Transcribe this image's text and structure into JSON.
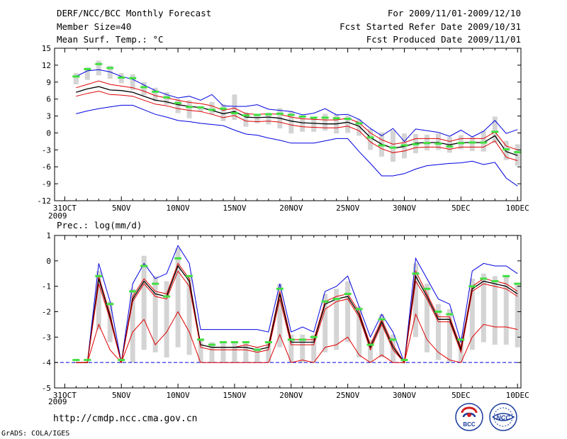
{
  "header": {
    "line1_left": "DERF/NCC/BCC Monthly Forecast",
    "line2_left": "Member Size=40",
    "line3_left": "Mean Surf. Temp.: °C",
    "line1_right": "For 2009/11/01-2009/12/10",
    "line2_right": "Fcst Started Refer Date 2009/10/31",
    "line3_right": "Fcst Produced Date 2009/11/01"
  },
  "precip_title": "Prec.: log(mm/d)",
  "year_label": "2009",
  "footer": {
    "url": "http://cmdp.ncc.cma.gov.cn",
    "grads": "GrADS: COLA/IGES"
  },
  "logos": {
    "bcc_text": "BCC",
    "ncc_text": "NCC"
  },
  "colors": {
    "mean": "#000000",
    "spread": "#e00000",
    "extreme": "#0000e0",
    "member": "#d4d4d4",
    "median": "#40e040",
    "baseline": "#0000e0"
  },
  "chart_data": [
    {
      "type": "line",
      "title": "Mean Surf. Temp.: °C",
      "x_tick_labels": [
        "31OCT",
        "5NOV",
        "10NOV",
        "15NOV",
        "20NOV",
        "25NOV",
        "30NOV",
        "5DEC",
        "10DEC"
      ],
      "x_tick_days": [
        0,
        5,
        10,
        15,
        20,
        25,
        30,
        35,
        40
      ],
      "ylim": [
        -12,
        15
      ],
      "yticks": [
        -12,
        -9,
        -6,
        -3,
        0,
        3,
        6,
        9,
        12,
        15
      ],
      "days": [
        1,
        2,
        3,
        4,
        5,
        6,
        7,
        8,
        9,
        10,
        11,
        12,
        13,
        14,
        15,
        16,
        17,
        18,
        19,
        20,
        21,
        22,
        23,
        24,
        25,
        26,
        27,
        28,
        29,
        30,
        31,
        32,
        33,
        34,
        35,
        36,
        37,
        38,
        39,
        40
      ],
      "series": [
        {
          "name": "ensemble-max",
          "color": "#0000e0",
          "values": [
            10,
            11,
            11.2,
            10.8,
            10,
            9.5,
            8.5,
            7.5,
            6.8,
            6.2,
            6.5,
            5.8,
            6.8,
            4.8,
            4.7,
            4.7,
            5,
            4.2,
            4,
            3.8,
            3.2,
            3.5,
            4.3,
            3.2,
            3.3,
            2.4,
            0.8,
            -0.5,
            0.8,
            -1.5,
            0.7,
            0.4,
            0.1,
            -0.6,
            0.5,
            -0.7,
            0.3,
            2.2,
            -0.1,
            0.6
          ]
        },
        {
          "name": "spread-upper",
          "color": "#e00000",
          "values": [
            8,
            8.6,
            9.2,
            8.6,
            8.3,
            8,
            7.4,
            6.6,
            6.2,
            5.8,
            5.4,
            5.2,
            4.8,
            4,
            4.4,
            3.4,
            3.3,
            3.4,
            3.3,
            2.8,
            2.5,
            2.4,
            2.3,
            2.3,
            2.6,
            1.8,
            0,
            -1.2,
            -2,
            -1.7,
            -1,
            -1,
            -1,
            -1.5,
            -1,
            -1,
            -1,
            0.2,
            -2.3,
            -3
          ]
        },
        {
          "name": "ensemble-mean",
          "color": "#000000",
          "values": [
            7.2,
            7.8,
            8.2,
            7.6,
            7.5,
            7.2,
            6.5,
            5.8,
            5.5,
            5,
            4.7,
            4.5,
            4,
            3.4,
            3.8,
            2.8,
            2.7,
            2.8,
            2.6,
            2.1,
            1.8,
            1.7,
            1.6,
            1.6,
            1.9,
            1.2,
            -0.8,
            -2,
            -2.7,
            -2.4,
            -1.8,
            -1.7,
            -1.7,
            -2.1,
            -1.7,
            -1.7,
            -1.7,
            -0.5,
            -3.3,
            -4
          ]
        },
        {
          "name": "spread-lower",
          "color": "#e00000",
          "values": [
            6.5,
            7,
            7.4,
            6.8,
            6.7,
            6.5,
            5.8,
            5.1,
            4.8,
            4.3,
            4,
            3.8,
            3.3,
            2.7,
            3.1,
            2.1,
            2,
            2.1,
            1.9,
            1.4,
            1.1,
            1,
            0.9,
            0.9,
            1.2,
            0.4,
            -1.6,
            -2.8,
            -3.5,
            -3.2,
            -2.6,
            -2.5,
            -2.5,
            -2.9,
            -2.5,
            -2.5,
            -2.5,
            -1.4,
            -4.3,
            -4.9
          ]
        },
        {
          "name": "ensemble-min",
          "color": "#0000e0",
          "values": [
            3.4,
            3.9,
            4.3,
            4.6,
            4.9,
            4.9,
            4.1,
            3.3,
            2.8,
            2.2,
            2,
            1.7,
            1.5,
            1.3,
            0.5,
            -0.2,
            -0.4,
            -0.9,
            -1.3,
            -1.8,
            -1.8,
            -1.8,
            -1.4,
            -1,
            -1,
            -3.3,
            -5.4,
            -7.6,
            -7.6,
            -7.2,
            -6.4,
            -5.8,
            -5.6,
            -5.4,
            -5.3,
            -5,
            -5.6,
            -5.2,
            -8,
            -9.4
          ]
        }
      ],
      "median_values": [
        10,
        11.3,
        12.2,
        11.5,
        9.8,
        9.7,
        8.1,
        7.3,
        6.3,
        5.3,
        4.6,
        4.5,
        4.1,
        4.3,
        3.5,
        3.1,
        3.2,
        3.3,
        3.4,
        3.2,
        2.9,
        2.7,
        2.7,
        2.6,
        2.5,
        1.7,
        -0.8,
        -2.2,
        -2.6,
        -2.2,
        -2,
        -1.8,
        -1.9,
        -2.4,
        -1.8,
        -1.7,
        -1.7,
        0.2,
        -2.9,
        -3.4
      ],
      "member_boxes": [
        [
          8.6,
          10.6
        ],
        [
          9.4,
          11.6
        ],
        [
          10.2,
          12.8
        ],
        [
          9.6,
          11.9
        ],
        [
          8.8,
          10.6
        ],
        [
          7.6,
          10.4
        ],
        [
          6.7,
          9
        ],
        [
          5.6,
          8
        ],
        [
          5,
          7.2
        ],
        [
          3.5,
          6
        ],
        [
          2.6,
          5.8
        ],
        [
          3.8,
          4.8
        ],
        [
          3.3,
          5.5
        ],
        [
          2.1,
          5.1
        ],
        [
          2.3,
          6.8
        ],
        [
          1.1,
          3.7
        ],
        [
          1.7,
          3.4
        ],
        [
          1.5,
          3.6
        ],
        [
          0.8,
          4.4
        ],
        [
          -0.1,
          3.9
        ],
        [
          0.2,
          2.8
        ],
        [
          0.2,
          2.8
        ],
        [
          0.4,
          3.4
        ],
        [
          -0.1,
          3.3
        ],
        [
          0,
          3.1
        ],
        [
          -0.5,
          2.4
        ],
        [
          -3,
          0.7
        ],
        [
          -4.2,
          0.1
        ],
        [
          -5.1,
          0.5
        ],
        [
          -4.5,
          -0.1
        ],
        [
          -3.6,
          -0.2
        ],
        [
          -3.1,
          -0.3
        ],
        [
          -3,
          -0.1
        ],
        [
          -3.5,
          -0.7
        ],
        [
          -2.9,
          -0.4
        ],
        [
          -3.2,
          -0.7
        ],
        [
          -3.3,
          0.4
        ],
        [
          -1.8,
          2.9
        ],
        [
          -4.8,
          -1.4
        ],
        [
          -5.8,
          -2
        ]
      ]
    },
    {
      "type": "line",
      "title": "Prec.: log(mm/d)",
      "x_tick_labels": [
        "31OCT",
        "5NOV",
        "10NOV",
        "15NOV",
        "20NOV",
        "25NOV",
        "30NOV",
        "5DEC",
        "10DEC"
      ],
      "x_tick_days": [
        0,
        5,
        10,
        15,
        20,
        25,
        30,
        35,
        40
      ],
      "ylim": [
        -5,
        1
      ],
      "yticks": [
        -5,
        -4,
        -3,
        -2,
        -1,
        0,
        1
      ],
      "days": [
        1,
        2,
        3,
        4,
        5,
        6,
        7,
        8,
        9,
        10,
        11,
        12,
        13,
        14,
        15,
        16,
        17,
        18,
        19,
        20,
        21,
        22,
        23,
        24,
        25,
        26,
        27,
        28,
        29,
        30,
        31,
        32,
        33,
        34,
        35,
        36,
        37,
        38,
        39,
        40
      ],
      "baseline": -4,
      "series": [
        {
          "name": "ensemble-max",
          "color": "#0000e0",
          "values": [
            -4,
            -4,
            -0.1,
            -1.6,
            -4,
            -0.9,
            -0.1,
            -0.7,
            -0.5,
            0.6,
            -0.1,
            -2.7,
            -2.7,
            -2.7,
            -2.7,
            -2.7,
            -2.7,
            -2.8,
            -0.9,
            -2.8,
            -2.6,
            -2.8,
            -1.2,
            -1,
            -0.6,
            -1.8,
            -3,
            -2.1,
            -2.8,
            -4,
            0.1,
            -0.7,
            -1.5,
            -1.7,
            -3.2,
            -0.4,
            -0.1,
            -0.2,
            -0.2,
            -0.5
          ]
        },
        {
          "name": "spread-upper",
          "color": "#e00000",
          "values": [
            -4,
            -4,
            -0.6,
            -2.1,
            -4,
            -1.4,
            -0.7,
            -1.2,
            -1.3,
            -0.1,
            -0.7,
            -3.3,
            -3.4,
            -3.4,
            -3.4,
            -3.3,
            -3.4,
            -3.3,
            -1.2,
            -3.1,
            -3.1,
            -3.1,
            -1.6,
            -1.4,
            -1.3,
            -2,
            -3.3,
            -2.3,
            -3.3,
            -4,
            -0.4,
            -1.3,
            -2.2,
            -2.2,
            -3.4,
            -1,
            -0.7,
            -0.8,
            -0.9,
            -1.2
          ]
        },
        {
          "name": "ensemble-mean",
          "color": "#000000",
          "values": [
            -4,
            -4,
            -0.7,
            -2.2,
            -4,
            -1.5,
            -0.8,
            -1.3,
            -1.4,
            -0.2,
            -0.8,
            -3.3,
            -3.4,
            -3.4,
            -3.4,
            -3.4,
            -3.5,
            -3.4,
            -1.3,
            -3.2,
            -3.2,
            -3.2,
            -1.7,
            -1.5,
            -1.4,
            -2.1,
            -3.4,
            -2.4,
            -3.4,
            -4,
            -0.6,
            -1.4,
            -2.3,
            -2.3,
            -3.5,
            -1.1,
            -0.8,
            -0.9,
            -1,
            -1.3
          ]
        },
        {
          "name": "spread-lower",
          "color": "#e00000",
          "values": [
            -4,
            -4,
            -0.9,
            -2.3,
            -4,
            -1.6,
            -0.9,
            -1.4,
            -1.5,
            -0.4,
            -1,
            -3.4,
            -3.5,
            -3.5,
            -3.5,
            -3.5,
            -3.6,
            -3.5,
            -1.5,
            -3.3,
            -3.3,
            -3.3,
            -1.9,
            -1.6,
            -1.5,
            -2.2,
            -3.5,
            -2.5,
            -3.5,
            -4,
            -0.8,
            -1.5,
            -2.4,
            -2.4,
            -3.6,
            -1.2,
            -0.9,
            -1,
            -1.1,
            -1.4
          ]
        },
        {
          "name": "ensemble-lower-line",
          "color": "#e00000",
          "values": [
            -4,
            -4,
            -2.5,
            -3.5,
            -4,
            -2.8,
            -2.3,
            -3.3,
            -2.8,
            -2,
            -2.8,
            -4,
            -4,
            -4,
            -4,
            -4,
            -4,
            -4,
            -2.9,
            -4,
            -3.9,
            -4,
            -3.4,
            -3.3,
            -3,
            -3.7,
            -4,
            -3.7,
            -4,
            -4,
            -2.1,
            -3.1,
            -3.6,
            -3.9,
            -4,
            -3,
            -2.5,
            -2.6,
            -2.6,
            -2.7
          ]
        }
      ],
      "median_values": [
        -3.9,
        -3.9,
        -0.6,
        -1.7,
        -3.9,
        -1.2,
        -0.2,
        -0.9,
        -1.4,
        0.1,
        -0.6,
        -3.1,
        -3.3,
        -3.2,
        -3.2,
        -3.2,
        -3.5,
        -3.2,
        -1.1,
        -3.1,
        -3.1,
        -3,
        -1.6,
        -1.5,
        -1.3,
        -1.9,
        -3.3,
        -2.3,
        -3.1,
        -3.9,
        -0.5,
        -1.1,
        -2,
        -2.1,
        -3.1,
        -1,
        -0.7,
        -0.8,
        -0.6,
        -0.9
      ],
      "member_boxes": [
        [
          -4,
          -4
        ],
        [
          -4,
          -4
        ],
        [
          -2.7,
          -0.4
        ],
        [
          -3.2,
          -1.6
        ],
        [
          -4,
          -4
        ],
        [
          -4,
          -1.1
        ],
        [
          -3.5,
          0.2
        ],
        [
          -3.6,
          -0.6
        ],
        [
          -3.8,
          -0.8
        ],
        [
          -3.4,
          0.5
        ],
        [
          -3.7,
          -0.6
        ],
        [
          -4,
          -3.1
        ],
        [
          -4,
          -3.2
        ],
        [
          -4,
          -3.2
        ],
        [
          -4,
          -3.2
        ],
        [
          -4,
          -3.2
        ],
        [
          -4,
          -3.4
        ],
        [
          -4,
          -3.2
        ],
        [
          -3.4,
          -0.9
        ],
        [
          -4,
          -2.9
        ],
        [
          -4,
          -2.9
        ],
        [
          -4,
          -2.9
        ],
        [
          -3.6,
          -1.3
        ],
        [
          -3.5,
          -1.1
        ],
        [
          -3.2,
          -0.8
        ],
        [
          -3.8,
          -1.8
        ],
        [
          -4,
          -3.1
        ],
        [
          -3.8,
          -2.1
        ],
        [
          -4,
          -2.9
        ],
        [
          -4,
          -4
        ],
        [
          -3,
          -0.1
        ],
        [
          -3.6,
          -0.9
        ],
        [
          -3.9,
          -1.7
        ],
        [
          -4,
          -1.9
        ],
        [
          -4,
          -3
        ],
        [
          -3.5,
          -0.7
        ],
        [
          -3.2,
          -0.5
        ],
        [
          -3.3,
          -0.6
        ],
        [
          -3.3,
          -0.6
        ],
        [
          -3.4,
          -0.9
        ]
      ]
    }
  ]
}
